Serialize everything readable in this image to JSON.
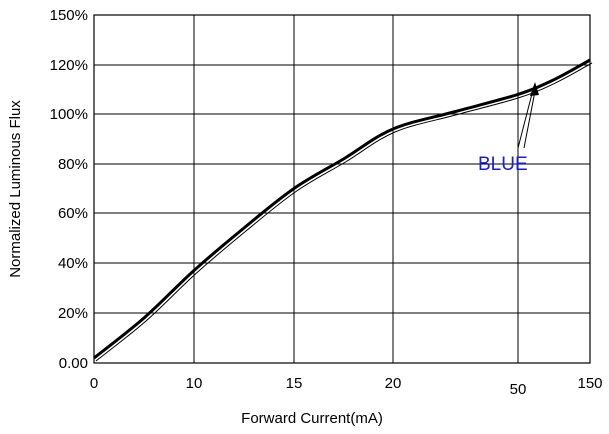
{
  "chart_data": {
    "type": "line",
    "title": "",
    "xlabel": "Forward Current(mA)",
    "ylabel": "Normalized Luminous Flux",
    "x_tick_labels": [
      "0",
      "10",
      "15",
      "20",
      "50",
      "150"
    ],
    "y_tick_labels": [
      "0.00",
      "20%",
      "40%",
      "60%",
      "80%",
      "100%",
      "120%",
      "150%"
    ],
    "grid": true,
    "series": [
      {
        "name": "BLUE",
        "color": "#000000",
        "x_tick_index": [
          0,
          0.5,
          1,
          1.5,
          2,
          2.5,
          3,
          3.5,
          4,
          4.5,
          5
        ],
        "y_percent": [
          2,
          18,
          37,
          54,
          70,
          82,
          94,
          101,
          108,
          114,
          123
        ]
      }
    ],
    "annotation": {
      "text": "BLUE",
      "color": "#1c1cd0"
    }
  }
}
